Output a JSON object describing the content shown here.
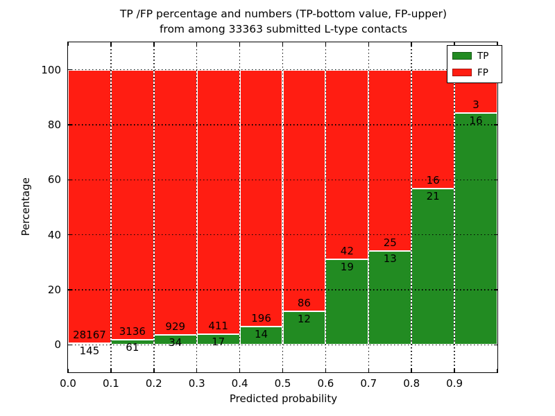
{
  "figure": {
    "background": "#ffffff",
    "text_color": "#000000"
  },
  "chart_data": {
    "type": "bar",
    "stacked": true,
    "title_line1": "TP /FP percentage and numbers (TP-bottom value, FP-upper)",
    "title_line2": "from among 33363 submitted L-type contacts",
    "total_submitted": 33363,
    "xlabel": "Predicted probability",
    "ylabel": "Percentage",
    "xlim": [
      0.0,
      1.0
    ],
    "ylim": [
      -10,
      110
    ],
    "xticks": [
      "0.0",
      "0.1",
      "0.2",
      "0.3",
      "0.4",
      "0.5",
      "0.6",
      "0.7",
      "0.8",
      "0.9"
    ],
    "yticks": [
      0,
      20,
      40,
      60,
      80,
      100
    ],
    "bins": [
      "0.0-0.1",
      "0.1-0.2",
      "0.2-0.3",
      "0.3-0.4",
      "0.4-0.5",
      "0.5-0.6",
      "0.6-0.7",
      "0.7-0.8",
      "0.8-0.9",
      "0.9-1.0"
    ],
    "series": [
      {
        "name": "TP",
        "color": "#228b22",
        "counts": [
          145,
          61,
          34,
          17,
          14,
          12,
          19,
          13,
          21,
          16
        ]
      },
      {
        "name": "FP",
        "color": "#ff1d12",
        "counts": [
          28167,
          3136,
          929,
          411,
          196,
          86,
          42,
          25,
          16,
          3
        ]
      }
    ],
    "tp_percent": [
      0.51,
      1.91,
      3.53,
      3.97,
      6.67,
      12.24,
      31.15,
      34.21,
      56.76,
      84.21
    ],
    "bar_total_percent": 100,
    "bar_edge_color": "#ffffff",
    "grid": "dotted black, both axes, drawn above bars",
    "legend_position": "upper right",
    "label_rule": "TP count printed below segment boundary, FP count printed above it"
  }
}
